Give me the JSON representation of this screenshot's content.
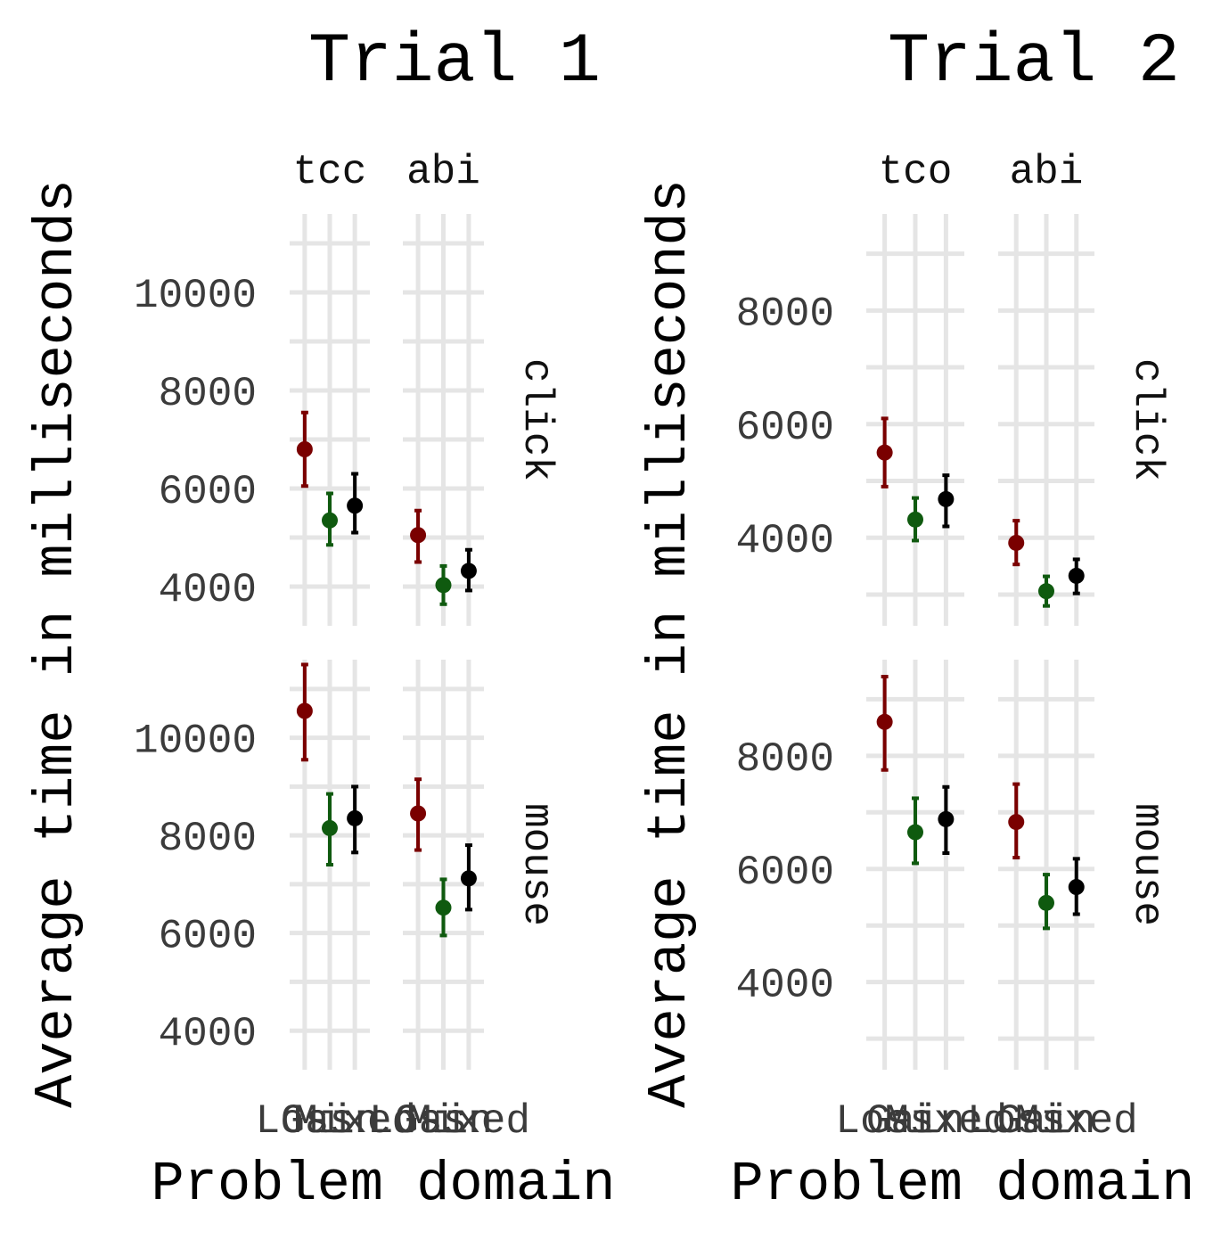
{
  "chart_data": [
    {
      "type": "scatter",
      "title": "Trial 1",
      "xlabel": "Problem domain",
      "ylabel": "Average time in milliseconds",
      "x_facets": [
        "tcc",
        "abi"
      ],
      "y_facets": [
        "click",
        "mouse"
      ],
      "categories": [
        "Loss",
        "Gain",
        "Mixed"
      ],
      "category_tick_labels": [
        "Loss",
        "Gain",
        "Mixed",
        "Loss",
        "Gain",
        "Mixed"
      ],
      "yticks": [
        4000,
        6000,
        8000,
        10000
      ],
      "ylim": [
        3200,
        11600
      ],
      "error_bars": true,
      "colors": {
        "Loss": "#7a0000",
        "Gain": "#0f5a0f",
        "Mixed": "#000000"
      },
      "panels": [
        {
          "row": "click",
          "facet": "tcc",
          "means": [
            6800,
            5350,
            5650
          ],
          "lower": [
            6050,
            4850,
            5100
          ],
          "upper": [
            7550,
            5900,
            6300
          ]
        },
        {
          "row": "click",
          "facet": "abi",
          "means": [
            5050,
            4030,
            4320
          ],
          "lower": [
            4500,
            3640,
            3920
          ],
          "upper": [
            5550,
            4420,
            4750
          ]
        },
        {
          "row": "mouse",
          "facet": "tcc",
          "means": [
            10550,
            8150,
            8350
          ],
          "lower": [
            9550,
            7400,
            7650
          ],
          "upper": [
            11500,
            8850,
            9000
          ]
        },
        {
          "row": "mouse",
          "facet": "abi",
          "means": [
            8450,
            6520,
            7120
          ],
          "lower": [
            7700,
            5950,
            6480
          ],
          "upper": [
            9150,
            7100,
            7800
          ]
        }
      ]
    },
    {
      "type": "scatter",
      "title": "Trial 2",
      "xlabel": "Problem domain",
      "ylabel": "Average time in milliseconds",
      "x_facets": [
        "tco",
        "abi"
      ],
      "y_facets": [
        "click",
        "mouse"
      ],
      "categories": [
        "Loss",
        "Gain",
        "Mixed"
      ],
      "category_tick_labels": [
        "Loss",
        "Gain",
        "Mixed",
        "Loss",
        "Gain",
        "Mixed"
      ],
      "yticks": [
        4000,
        6000,
        8000
      ],
      "ylim": [
        2450,
        9700
      ],
      "error_bars": true,
      "colors": {
        "Loss": "#7a0000",
        "Gain": "#0f5a0f",
        "Mixed": "#000000"
      },
      "panels": [
        {
          "row": "click",
          "facet": "tco",
          "means": [
            5500,
            4320,
            4680
          ],
          "lower": [
            4900,
            3950,
            4200
          ],
          "upper": [
            6100,
            4700,
            5100
          ]
        },
        {
          "row": "click",
          "facet": "abi",
          "means": [
            3910,
            3060,
            3330
          ],
          "lower": [
            3530,
            2800,
            3020
          ],
          "upper": [
            4300,
            3320,
            3620
          ]
        },
        {
          "row": "mouse",
          "facet": "tco",
          "means": [
            8600,
            6650,
            6880
          ],
          "lower": [
            7750,
            6100,
            6280
          ],
          "upper": [
            9400,
            7250,
            7450
          ]
        },
        {
          "row": "mouse",
          "facet": "abi",
          "means": [
            6830,
            5400,
            5680
          ],
          "lower": [
            6200,
            4950,
            5200
          ],
          "upper": [
            7500,
            5900,
            6180
          ]
        }
      ]
    }
  ]
}
